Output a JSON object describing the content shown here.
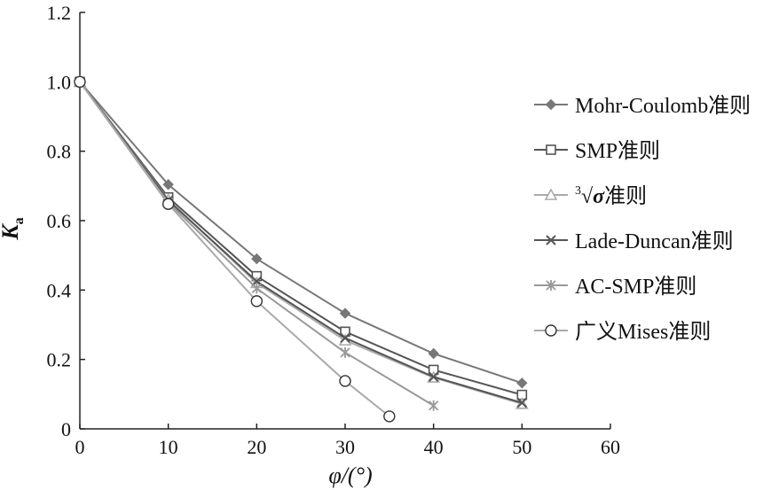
{
  "chart_data": {
    "type": "line",
    "title": "",
    "xlabel": "φ/(°)",
    "ylabel": "K",
    "ylabel_subscript": "a",
    "xlim": [
      0,
      60
    ],
    "ylim": [
      0,
      1.2
    ],
    "xticks": [
      0,
      10,
      20,
      30,
      40,
      50,
      60
    ],
    "yticks": [
      0,
      0.2,
      0.4,
      0.6,
      0.8,
      1.0,
      1.2
    ],
    "xtick_labels": [
      "0",
      "10",
      "20",
      "30",
      "40",
      "50",
      "60"
    ],
    "ytick_labels": [
      "0",
      "0.2",
      "0.4",
      "0.6",
      "0.8",
      "1.0",
      "1.2"
    ],
    "grid": false,
    "legend_position": "right",
    "series": [
      {
        "name": "Mohr-Coulomb准则",
        "marker": "diamond-filled",
        "line_color": "#777777",
        "marker_color": "#777777",
        "x": [
          0,
          10,
          20,
          30,
          40,
          50
        ],
        "y": [
          1.0,
          0.704,
          0.49,
          0.333,
          0.217,
          0.132
        ]
      },
      {
        "name": "SMP准则",
        "marker": "square-open",
        "line_color": "#555555",
        "marker_color": "#555555",
        "x": [
          0,
          10,
          20,
          30,
          40,
          50
        ],
        "y": [
          1.0,
          0.667,
          0.44,
          0.28,
          0.17,
          0.098
        ]
      },
      {
        "name": "σ准则",
        "name_prefix": "3",
        "marker": "triangle-open",
        "line_color": "#aaaaaa",
        "marker_color": "#aaaaaa",
        "x": [
          0,
          10,
          20,
          30,
          40,
          50
        ],
        "y": [
          1.0,
          0.66,
          0.42,
          0.255,
          0.148,
          0.072
        ]
      },
      {
        "name": "Lade-Duncan准则",
        "marker": "x",
        "line_color": "#555555",
        "marker_color": "#555555",
        "x": [
          0,
          10,
          20,
          30,
          40,
          50
        ],
        "y": [
          1.0,
          0.658,
          0.425,
          0.262,
          0.15,
          0.075
        ]
      },
      {
        "name": "AC-SMP准则",
        "marker": "asterisk",
        "line_color": "#999999",
        "marker_color": "#999999",
        "x": [
          0,
          10,
          20,
          30,
          40
        ],
        "y": [
          1.0,
          0.652,
          0.405,
          0.22,
          0.067
        ]
      },
      {
        "name": "广义Mises准则",
        "marker": "circle-open",
        "line_color": "#aaaaaa",
        "marker_color": "#333333",
        "x": [
          0,
          10,
          20,
          30,
          35
        ],
        "y": [
          1.0,
          0.648,
          0.368,
          0.138,
          0.036
        ]
      }
    ]
  }
}
